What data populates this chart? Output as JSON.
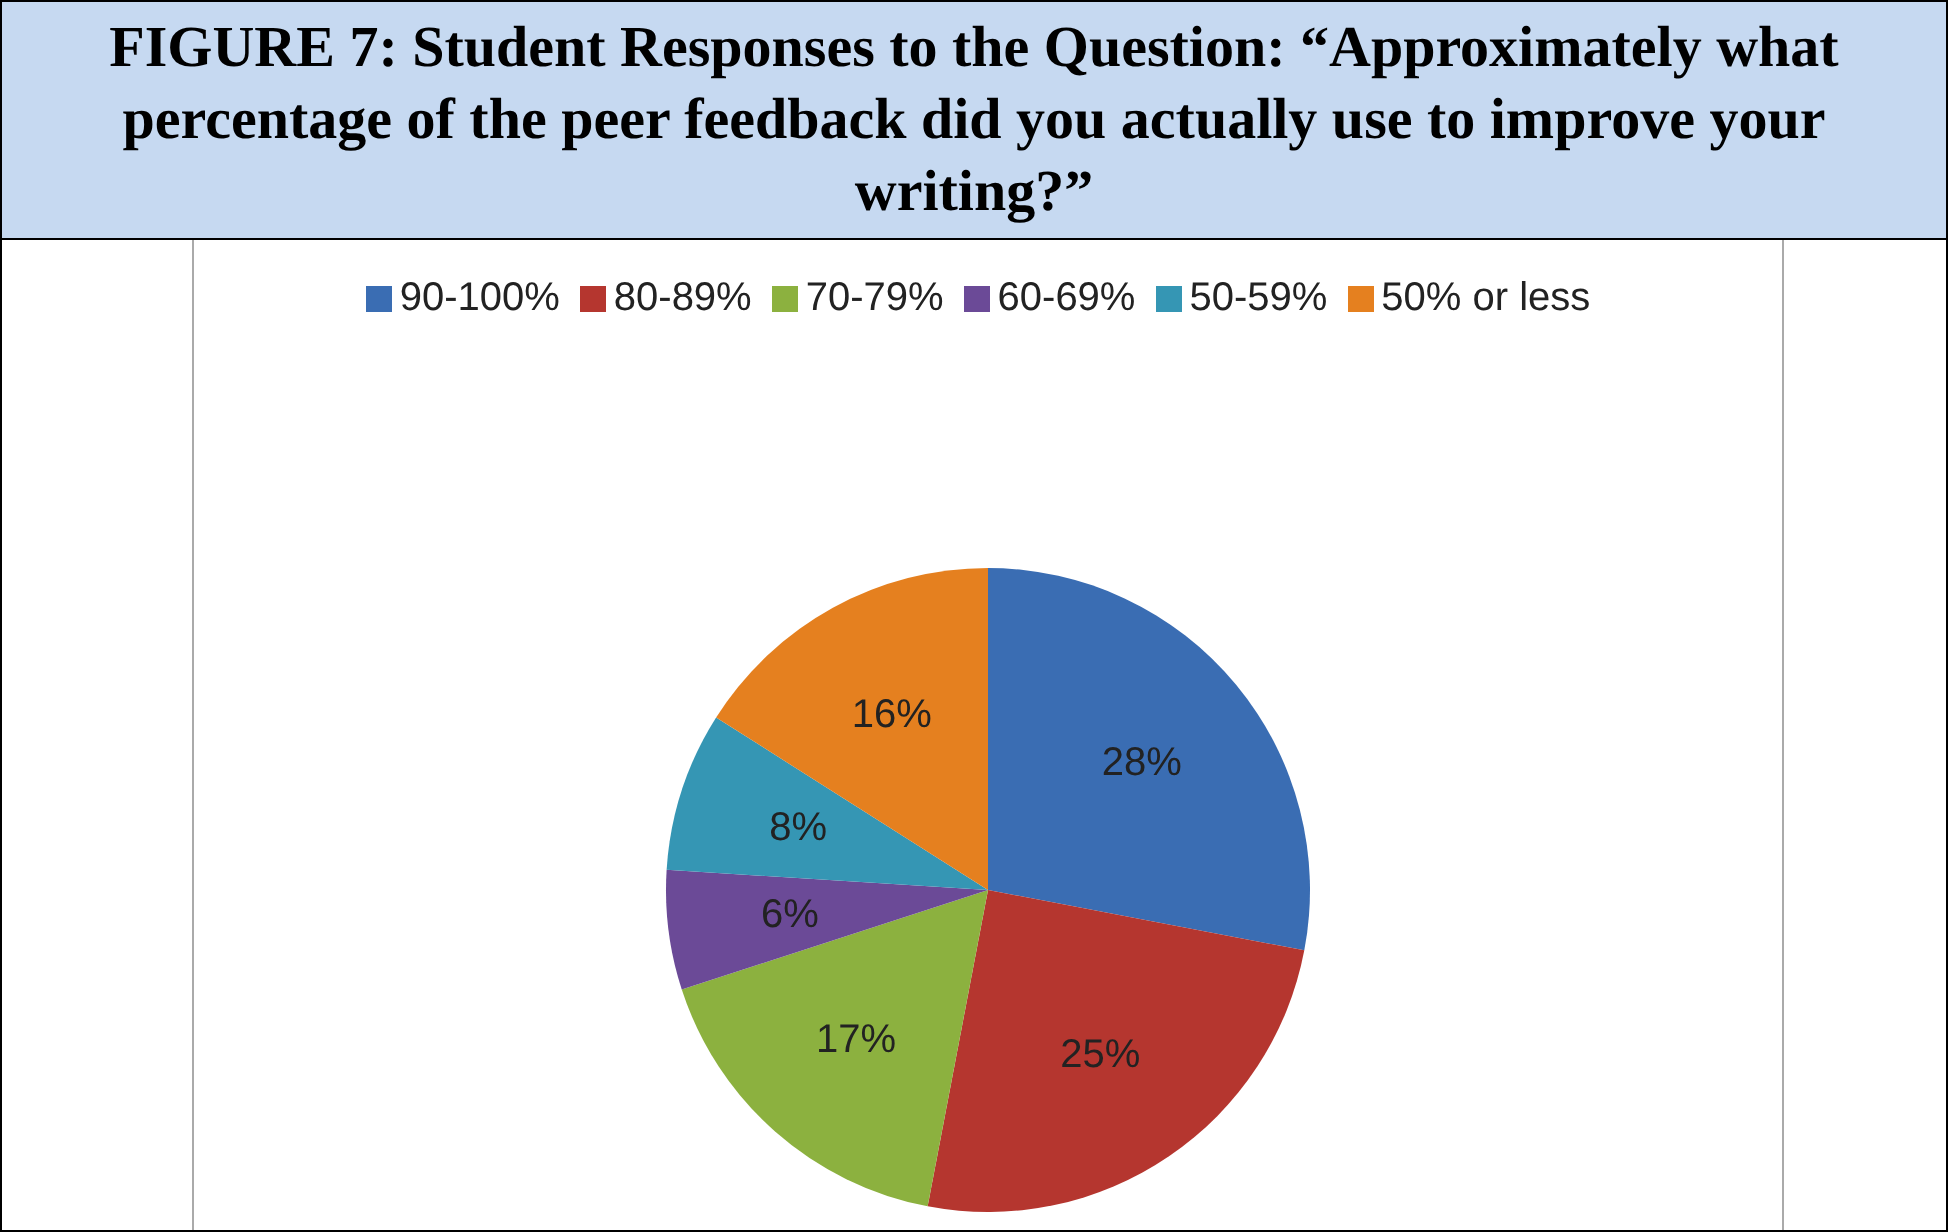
{
  "chart_data": {
    "type": "pie",
    "title": "FIGURE 7: Student Responses to the Question: “Approximately what percentage of the peer feedback did you actually use to improve your writing?”",
    "categories": [
      "90-100%",
      "80-89%",
      "70-79%",
      "60-69%",
      "50-59%",
      "50% or less"
    ],
    "values": [
      28,
      25,
      17,
      6,
      8,
      16
    ],
    "value_labels": [
      "28%",
      "25%",
      "17%",
      "6%",
      "8%",
      "16%"
    ],
    "colors": [
      "#3a6db3",
      "#b5362f",
      "#8cb13f",
      "#6b4a97",
      "#3596b4",
      "#e5801f"
    ],
    "legend": "top"
  }
}
